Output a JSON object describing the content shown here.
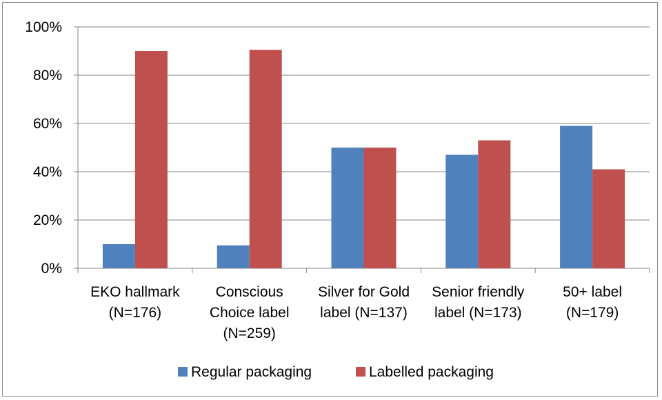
{
  "chart_data": {
    "type": "bar",
    "categories": [
      [
        "EKO hallmark",
        "(N=176)"
      ],
      [
        "Conscious",
        "Choice label",
        "(N=259)"
      ],
      [
        "Silver for Gold",
        "label (N=137)"
      ],
      [
        "Senior friendly",
        "label (N=173)"
      ],
      [
        "50+ label",
        "(N=179)"
      ]
    ],
    "series": [
      {
        "name": "Regular packaging",
        "color": "#4f81bd",
        "values": [
          10,
          9.5,
          50,
          47,
          59
        ]
      },
      {
        "name": "Labelled packaging",
        "color": "#c0504d",
        "values": [
          90,
          90.5,
          50,
          53,
          41
        ]
      }
    ],
    "ylim": [
      0,
      100
    ],
    "yticks": [
      0,
      20,
      40,
      60,
      80,
      100
    ],
    "ytick_labels": [
      "0%",
      "20%",
      "40%",
      "60%",
      "80%",
      "100%"
    ],
    "grid": true,
    "legend": "bottom"
  }
}
